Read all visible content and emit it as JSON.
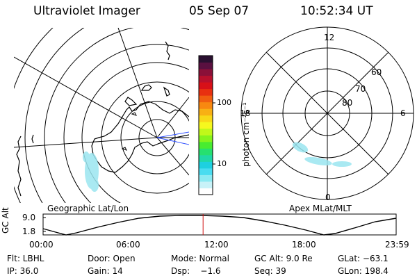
{
  "header": {
    "title": "Ultraviolet Imager",
    "date": "05 Sep 07",
    "time": "10:52:34 UT"
  },
  "colorbar": {
    "unit_label": "photon cm⁻²s⁻¹",
    "tick_labels": [
      "100",
      "10"
    ],
    "colors": [
      "#ffffff",
      "#c8f2f8",
      "#8ceaf2",
      "#4adcf0",
      "#1ed0e0",
      "#20d8a8",
      "#26e070",
      "#48ec30",
      "#86f41c",
      "#c0f81a",
      "#f6f81e",
      "#f8d818",
      "#f8b014",
      "#f88810",
      "#f05e10",
      "#e83010",
      "#d81018",
      "#b8102c",
      "#8a1038",
      "#5a1040",
      "#2a1030"
    ]
  },
  "left_map": {
    "caption": "Geographic Lat/Lon"
  },
  "right_map": {
    "caption": "Apex MLat/MLT",
    "mlt_labels": {
      "top": "12",
      "left": "18",
      "right": "6",
      "bottom": "0"
    },
    "lat_labels": [
      "60",
      "70",
      "80"
    ]
  },
  "altitude_plot": {
    "axis_label": "GC Alt",
    "y_labels": [
      "9.0",
      "1.8"
    ],
    "x_labels": [
      "00:00",
      "06:00",
      "12:00",
      "18:00",
      "23:59"
    ],
    "current_time_hours": 10.876
  },
  "info_rows": [
    {
      "filter": "Flt: LBHL",
      "door": "Door: Open",
      "mode": "Mode: Normal",
      "gc_alt": "GC Alt: 9.0 Re",
      "glat": "GLat: −63.1"
    },
    {
      "ip": "IP: 36.0",
      "gain": "Gain: 14",
      "dsp": "Dsp:    −1.6",
      "seq": "Seq: 39",
      "glon": "GLon: 198.4"
    }
  ],
  "colors": {
    "current_time_marker": "#d01010",
    "aurora": "#9be6f0"
  }
}
